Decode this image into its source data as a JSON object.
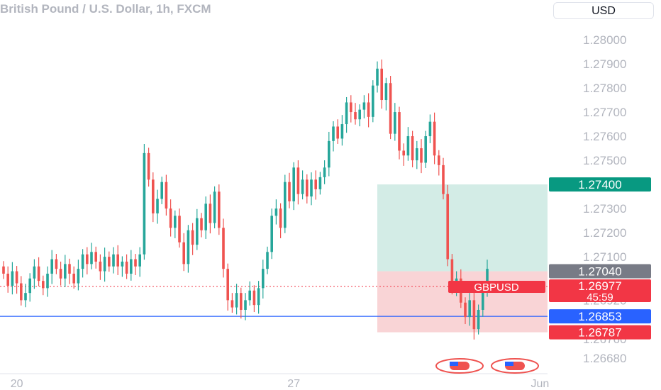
{
  "header": {
    "title": "British Pound / U.S. Dollar, 1h, FXCM",
    "currency_button": "USD"
  },
  "chart_data": {
    "type": "candlestick",
    "symbol": "GBPUSD",
    "title": "British Pound / U.S. Dollar, 1h, FXCM",
    "y_ticks": [
      "1.28000",
      "1.27900",
      "1.27800",
      "1.27700",
      "1.27600",
      "1.27500",
      "1.27300",
      "1.27200",
      "1.27100",
      "1.26920",
      "1.26760",
      "1.26680"
    ],
    "x_ticks": [
      {
        "label": "20",
        "index": 3
      },
      {
        "label": "27",
        "index": 66
      },
      {
        "label": "Jun",
        "index": 122
      }
    ],
    "ylim": [
      1.2665,
      1.2805
    ],
    "price_labels": {
      "take_profit": "1.27400",
      "entry": "1.27040",
      "current_price": "1.26977",
      "countdown": "45:59",
      "symbol_tag": "GBPUSD",
      "horizontal_line": "1.26853",
      "stop_loss": "1.26787"
    },
    "levels": {
      "take_profit": 1.274,
      "entry": 1.2704,
      "current": 1.26977,
      "horizontal_line": 1.26853,
      "stop_loss": 1.26787
    },
    "position": {
      "start_index": 85,
      "end_index": 126
    },
    "colors": {
      "up": "#26a69a",
      "down": "#ef5350",
      "profit_zone": "#d3ece6",
      "loss_zone": "#f9d4d6",
      "line": "#2962ff",
      "tp_label": "#089981",
      "entry_label": "#787b86",
      "current_label": "#f23645",
      "sl_label": "#f23645",
      "axis_text": "#b2b5be"
    },
    "closes": [
      1.2703,
      1.2698,
      1.2704,
      1.2699,
      1.2692,
      1.2695,
      1.2701,
      1.2706,
      1.27,
      1.2697,
      1.2703,
      1.2709,
      1.2705,
      1.2701,
      1.2707,
      1.2703,
      1.2699,
      1.2705,
      1.2711,
      1.2707,
      1.2712,
      1.2708,
      1.2704,
      1.271,
      1.2706,
      1.2711,
      1.2706,
      1.2708,
      1.2703,
      1.2709,
      1.2706,
      1.2711,
      1.2753,
      1.2742,
      1.2728,
      1.2734,
      1.2741,
      1.273,
      1.2722,
      1.2727,
      1.2716,
      1.2707,
      1.2721,
      1.2715,
      1.2726,
      1.2721,
      1.2732,
      1.2724,
      1.2737,
      1.2722,
      1.2705,
      1.2692,
      1.2689,
      1.2695,
      1.2688,
      1.2692,
      1.2696,
      1.269,
      1.2697,
      1.2705,
      1.2712,
      1.2727,
      1.273,
      1.2722,
      1.2741,
      1.2733,
      1.2747,
      1.2736,
      1.2742,
      1.2735,
      1.2742,
      1.2738,
      1.2743,
      1.2747,
      1.2758,
      1.2764,
      1.2759,
      1.2765,
      1.2774,
      1.277,
      1.2767,
      1.2771,
      1.2774,
      1.2768,
      1.2781,
      1.2788,
      1.2775,
      1.2782,
      1.2761,
      1.277,
      1.2754,
      1.2752,
      1.276,
      1.275,
      1.2755,
      1.2749,
      1.276,
      1.2766,
      1.2752,
      1.2748,
      1.2736,
      1.2709,
      1.2698,
      1.2701,
      1.2691,
      1.2685,
      1.2692,
      1.268,
      1.2688,
      1.2697,
      1.2705
    ]
  }
}
